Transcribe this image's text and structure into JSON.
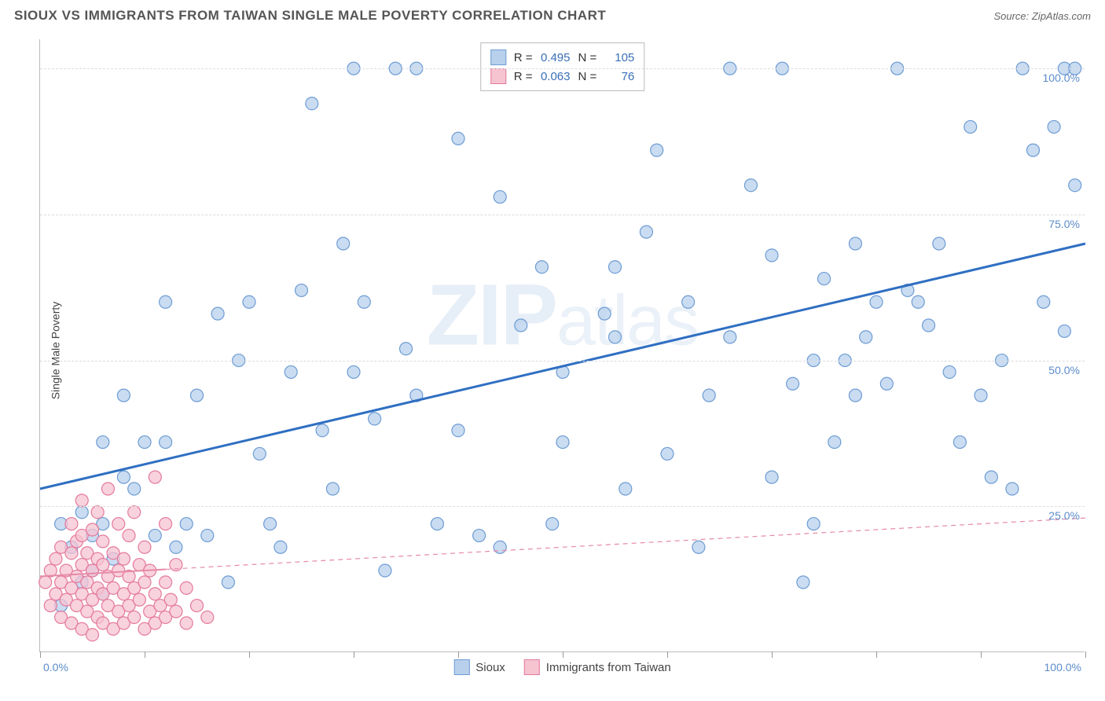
{
  "title": "SIOUX VS IMMIGRANTS FROM TAIWAN SINGLE MALE POVERTY CORRELATION CHART",
  "source": "Source: ZipAtlas.com",
  "ylabel": "Single Male Poverty",
  "watermark_main": "ZIP",
  "watermark_sub": "atlas",
  "series": [
    {
      "id": "sioux",
      "label": "Sioux",
      "r": "0.495",
      "n": "105",
      "marker_fill": "#b8d0ec",
      "marker_stroke": "#6d9cd4",
      "marker_opacity": 0.75,
      "marker_radius": 8,
      "line_color": "#2f6fc2",
      "line_width": 3,
      "line_dash": "none",
      "trend_start": [
        0,
        28
      ],
      "trend_end": [
        100,
        70
      ],
      "points": [
        [
          2,
          22
        ],
        [
          3,
          18
        ],
        [
          4,
          24
        ],
        [
          5,
          14
        ],
        [
          5,
          20
        ],
        [
          6,
          36
        ],
        [
          6,
          22
        ],
        [
          7,
          16
        ],
        [
          8,
          44
        ],
        [
          9,
          28
        ],
        [
          10,
          36
        ],
        [
          11,
          20
        ],
        [
          12,
          36
        ],
        [
          13,
          18
        ],
        [
          14,
          22
        ],
        [
          15,
          44
        ],
        [
          16,
          20
        ],
        [
          17,
          58
        ],
        [
          18,
          12
        ],
        [
          19,
          50
        ],
        [
          20,
          60
        ],
        [
          21,
          34
        ],
        [
          22,
          22
        ],
        [
          23,
          18
        ],
        [
          24,
          48
        ],
        [
          25,
          62
        ],
        [
          26,
          94
        ],
        [
          27,
          38
        ],
        [
          28,
          28
        ],
        [
          29,
          70
        ],
        [
          30,
          100
        ],
        [
          31,
          60
        ],
        [
          32,
          40
        ],
        [
          33,
          14
        ],
        [
          34,
          100
        ],
        [
          35,
          52
        ],
        [
          36,
          44
        ],
        [
          38,
          22
        ],
        [
          40,
          38
        ],
        [
          42,
          20
        ],
        [
          44,
          18
        ],
        [
          46,
          56
        ],
        [
          47,
          100
        ],
        [
          48,
          66
        ],
        [
          49,
          22
        ],
        [
          50,
          36
        ],
        [
          52,
          100
        ],
        [
          54,
          58
        ],
        [
          55,
          54
        ],
        [
          56,
          28
        ],
        [
          58,
          72
        ],
        [
          59,
          86
        ],
        [
          60,
          34
        ],
        [
          62,
          60
        ],
        [
          63,
          18
        ],
        [
          64,
          44
        ],
        [
          66,
          100
        ],
        [
          68,
          80
        ],
        [
          70,
          30
        ],
        [
          71,
          100
        ],
        [
          72,
          46
        ],
        [
          73,
          12
        ],
        [
          74,
          22
        ],
        [
          75,
          64
        ],
        [
          76,
          36
        ],
        [
          77,
          50
        ],
        [
          78,
          70
        ],
        [
          79,
          54
        ],
        [
          80,
          60
        ],
        [
          81,
          46
        ],
        [
          82,
          100
        ],
        [
          83,
          62
        ],
        [
          84,
          60
        ],
        [
          85,
          56
        ],
        [
          86,
          70
        ],
        [
          87,
          48
        ],
        [
          88,
          36
        ],
        [
          89,
          90
        ],
        [
          90,
          44
        ],
        [
          91,
          30
        ],
        [
          92,
          50
        ],
        [
          93,
          28
        ],
        [
          94,
          100
        ],
        [
          95,
          86
        ],
        [
          96,
          60
        ],
        [
          97,
          90
        ],
        [
          98,
          100
        ],
        [
          98,
          55
        ],
        [
          99,
          80
        ],
        [
          99,
          100
        ],
        [
          40,
          88
        ],
        [
          44,
          78
        ],
        [
          30,
          48
        ],
        [
          36,
          100
        ],
        [
          50,
          48
        ],
        [
          55,
          66
        ],
        [
          66,
          54
        ],
        [
          70,
          68
        ],
        [
          74,
          50
        ],
        [
          78,
          44
        ],
        [
          12,
          60
        ],
        [
          8,
          30
        ],
        [
          4,
          12
        ],
        [
          2,
          8
        ],
        [
          6,
          10
        ]
      ]
    },
    {
      "id": "taiwan",
      "label": "Immigrants from Taiwan",
      "r": "0.063",
      "n": "76",
      "marker_fill": "#f6c3d1",
      "marker_stroke": "#e57a9c",
      "marker_opacity": 0.75,
      "marker_radius": 8,
      "line_color": "#e68aa6",
      "line_width": 2,
      "line_dash": "6,5",
      "trend_start": [
        0,
        13
      ],
      "trend_end": [
        100,
        23
      ],
      "solid_portion": 0.12,
      "points": [
        [
          0.5,
          12
        ],
        [
          1,
          8
        ],
        [
          1,
          14
        ],
        [
          1.5,
          10
        ],
        [
          1.5,
          16
        ],
        [
          2,
          6
        ],
        [
          2,
          12
        ],
        [
          2,
          18
        ],
        [
          2.5,
          9
        ],
        [
          2.5,
          14
        ],
        [
          3,
          5
        ],
        [
          3,
          11
        ],
        [
          3,
          17
        ],
        [
          3,
          22
        ],
        [
          3.5,
          8
        ],
        [
          3.5,
          13
        ],
        [
          3.5,
          19
        ],
        [
          4,
          4
        ],
        [
          4,
          10
        ],
        [
          4,
          15
        ],
        [
          4,
          20
        ],
        [
          4,
          26
        ],
        [
          4.5,
          7
        ],
        [
          4.5,
          12
        ],
        [
          4.5,
          17
        ],
        [
          5,
          3
        ],
        [
          5,
          9
        ],
        [
          5,
          14
        ],
        [
          5,
          21
        ],
        [
          5.5,
          6
        ],
        [
          5.5,
          11
        ],
        [
          5.5,
          16
        ],
        [
          5.5,
          24
        ],
        [
          6,
          5
        ],
        [
          6,
          10
        ],
        [
          6,
          15
        ],
        [
          6,
          19
        ],
        [
          6.5,
          8
        ],
        [
          6.5,
          13
        ],
        [
          6.5,
          28
        ],
        [
          7,
          4
        ],
        [
          7,
          11
        ],
        [
          7,
          17
        ],
        [
          7.5,
          7
        ],
        [
          7.5,
          14
        ],
        [
          7.5,
          22
        ],
        [
          8,
          5
        ],
        [
          8,
          10
        ],
        [
          8,
          16
        ],
        [
          8.5,
          8
        ],
        [
          8.5,
          13
        ],
        [
          8.5,
          20
        ],
        [
          9,
          6
        ],
        [
          9,
          11
        ],
        [
          9,
          24
        ],
        [
          9.5,
          9
        ],
        [
          9.5,
          15
        ],
        [
          10,
          4
        ],
        [
          10,
          12
        ],
        [
          10,
          18
        ],
        [
          10.5,
          7
        ],
        [
          10.5,
          14
        ],
        [
          11,
          5
        ],
        [
          11,
          10
        ],
        [
          11,
          30
        ],
        [
          11.5,
          8
        ],
        [
          12,
          6
        ],
        [
          12,
          12
        ],
        [
          12,
          22
        ],
        [
          12.5,
          9
        ],
        [
          13,
          7
        ],
        [
          13,
          15
        ],
        [
          14,
          5
        ],
        [
          14,
          11
        ],
        [
          15,
          8
        ],
        [
          16,
          6
        ]
      ]
    }
  ],
  "axes": {
    "xlim": [
      0,
      100
    ],
    "ylim": [
      0,
      105
    ],
    "yticks": [
      {
        "v": 25,
        "label": "25.0%"
      },
      {
        "v": 50,
        "label": "50.0%"
      },
      {
        "v": 75,
        "label": "75.0%"
      },
      {
        "v": 100,
        "label": "100.0%"
      }
    ],
    "xtick_step": 10,
    "x0_label": "0.0%",
    "x100_label": "100.0%",
    "grid_color": "#dddddd",
    "axis_color": "#bbbbbb",
    "number_color": "#5b8cc9"
  },
  "background_color": "#ffffff"
}
